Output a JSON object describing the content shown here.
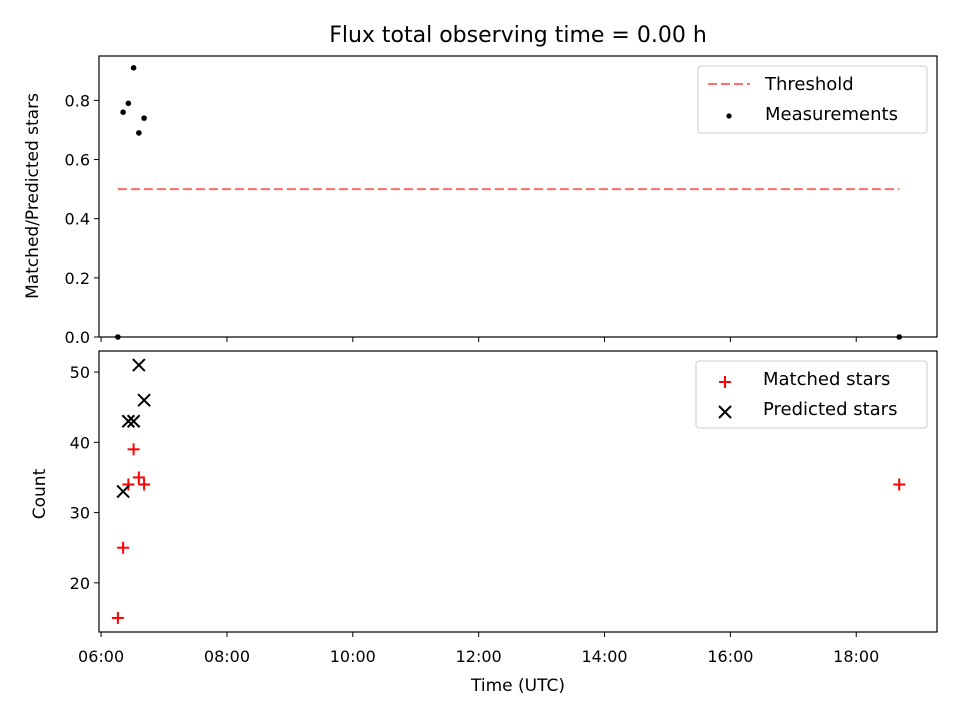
{
  "chart_data": {
    "title": "Flux total observing time = 0.00 h",
    "xlabel": "Time (UTC)",
    "x_ticks": [
      "06:00",
      "08:00",
      "10:00",
      "12:00",
      "14:00",
      "16:00",
      "18:00"
    ],
    "xlim": [
      "05:58",
      "19:17"
    ],
    "panels": [
      {
        "type": "scatter",
        "ylabel": "Matched/Predicted stars",
        "ylim": [
          0,
          0.95
        ],
        "y_ticks": [
          "0.0",
          "0.2",
          "0.4",
          "0.6",
          "0.8"
        ],
        "legend_position": "top-right",
        "series": [
          {
            "name": "Threshold",
            "kind": "dashed-line",
            "color": "#ff6b6b",
            "x": [
              "06:16",
              "18:41"
            ],
            "y": [
              0.5,
              0.5
            ]
          },
          {
            "name": "Measurements",
            "kind": "dot",
            "color": "#000000",
            "x": [
              "06:16",
              "06:21",
              "06:26",
              "06:31",
              "06:36",
              "06:41",
              "18:41"
            ],
            "y": [
              0.0,
              0.76,
              0.79,
              0.91,
              0.69,
              0.74,
              0.0
            ]
          }
        ]
      },
      {
        "type": "scatter",
        "ylabel": "Count",
        "ylim": [
          13,
          53
        ],
        "y_ticks": [
          "20",
          "30",
          "40",
          "50"
        ],
        "legend_position": "top-right",
        "series": [
          {
            "name": "Matched stars",
            "kind": "plus",
            "color": "#ff0000",
            "x": [
              "06:16",
              "06:21",
              "06:26",
              "06:31",
              "06:36",
              "06:41",
              "18:41"
            ],
            "y": [
              15,
              25,
              34,
              39,
              35,
              34,
              34
            ]
          },
          {
            "name": "Predicted stars",
            "kind": "cross",
            "color": "#000000",
            "x": [
              "06:21",
              "06:26",
              "06:31",
              "06:36",
              "06:41"
            ],
            "y": [
              33,
              43,
              43,
              51,
              46
            ]
          }
        ]
      }
    ]
  }
}
